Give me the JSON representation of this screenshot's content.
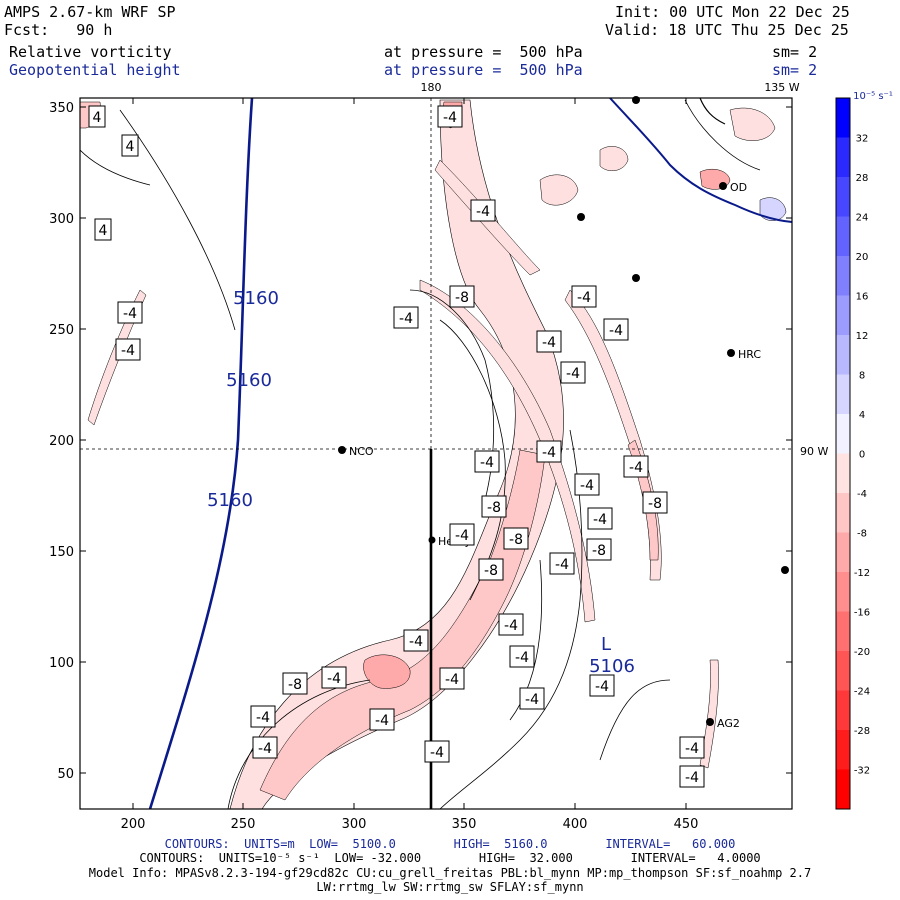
{
  "header": {
    "title": "AMPS 2.67-km WRF SP",
    "forecast": "Fcst:   90 h",
    "init": "Init: 00 UTC Mon 22 Dec 25",
    "valid": "Valid: 18 UTC Thu 25 Dec 25",
    "field1": "Relative vorticity",
    "field1_level": "at pressure =  500 hPa",
    "field1_sm": "sm= 2",
    "field2": "Geopotential height",
    "field2_level": "at pressure =  500 hPa",
    "field2_sm": "sm= 2"
  },
  "map": {
    "x_ticks": [
      "200",
      "250",
      "300",
      "350",
      "400",
      "450"
    ],
    "y_ticks": [
      "350",
      "300",
      "250",
      "200",
      "150",
      "100",
      "50"
    ],
    "meridian_label": "180",
    "corner_label": "135 W",
    "parallel_label": "90 W",
    "stations": [
      "NCO",
      "Henry",
      "HRC",
      "AG2",
      "OD"
    ],
    "low_marker": "L",
    "low_value": "5106",
    "height_labels": [
      "5160",
      "5160",
      "5160"
    ],
    "vorticity_labels": [
      "4",
      "4",
      "4",
      "-4",
      "-4",
      "-8",
      "-4",
      "-4",
      "-4",
      "-4",
      "-4",
      "-4",
      "-4",
      "-4",
      "-4",
      "-4",
      "-4",
      "-8",
      "-8",
      "-4",
      "-4",
      "-8",
      "-8",
      "-8",
      "-4",
      "-4",
      "-4",
      "-4",
      "-4",
      "-4",
      "-8",
      "-4",
      "-4",
      "-4",
      "-4",
      "-4",
      "-4",
      "-4",
      "-4"
    ]
  },
  "colorbar": {
    "unit": "10⁻⁵ s⁻¹",
    "labels": [
      "32",
      "28",
      "24",
      "20",
      "16",
      "12",
      "8",
      "4",
      "0",
      "-4",
      "-8",
      "-12",
      "-16",
      "-20",
      "-24",
      "-28",
      "-32"
    ],
    "colors": [
      "#0000ff",
      "#2a2aff",
      "#4747ff",
      "#6363ff",
      "#8080ff",
      "#9c9cff",
      "#b8b8ff",
      "#d5d5ff",
      "#f1f1ff",
      "#ffe3e3",
      "#ffc6c6",
      "#ffaaaa",
      "#ff8e8e",
      "#ff7171",
      "#ff5555",
      "#ff3939",
      "#ff1c1c",
      "#ff0000"
    ]
  },
  "footer": {
    "line1": "CONTOURS:  UNITS=m  LOW=  5100.0        HIGH=  5160.0        INTERVAL=   60.000",
    "line2": "CONTOURS:  UNITS=10⁻⁵ s⁻¹  LOW= -32.000        HIGH=  32.000        INTERVAL=   4.0000",
    "line3": "Model Info: MPASv8.2.3-194-gf29cd82c CU:cu_grell_freitas PBL:bl_mynn MP:mp_thompson SF:sf_noahmp 2.7",
    "line4": "LW:rrtmg_lw SW:rrtmg_sw SFLAY:sf_mynn"
  }
}
